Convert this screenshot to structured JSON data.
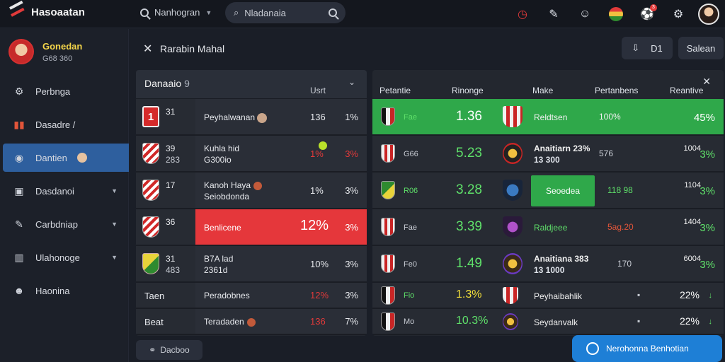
{
  "app": {
    "title": "Hasoaatan"
  },
  "topbar": {
    "search_label": "Nanhogran",
    "search_placeholder": "Nladanaia",
    "icons": [
      "clock-icon",
      "edit-icon",
      "smile-icon",
      "flag-icon",
      "ball-icon",
      "settings-icon",
      "avatar"
    ],
    "notif_count": "3"
  },
  "sidebar": {
    "profile": {
      "name": "Gonedan",
      "sub": "G68 360"
    },
    "items": [
      {
        "label": "Perbnga",
        "icon": "gear-icon"
      },
      {
        "label": "Dasadre /",
        "icon": "chart-icon"
      },
      {
        "label": "Dantien",
        "icon": "user-icon",
        "active": true
      },
      {
        "label": "Dasdanoi",
        "icon": "table-icon"
      },
      {
        "label": "Carbdniap",
        "icon": "edit-icon"
      },
      {
        "label": "Ulahonoge",
        "icon": "bars-icon"
      },
      {
        "label": "Haonina",
        "icon": "group-icon"
      }
    ]
  },
  "header": {
    "title": "Rarabin Mahal",
    "download_label": "D1",
    "save_label": "Salean"
  },
  "left_table": {
    "title": "Danaaio",
    "count": "9",
    "column": "Usrt",
    "rows": [
      {
        "rank": "31",
        "rank_sub": "",
        "name": "Peyhalwanan",
        "value": "136",
        "pct": "1%",
        "shield": "one",
        "shield_text": "1"
      },
      {
        "rank": "39",
        "rank_sub": "283",
        "name": "Kuhla hid",
        "name_sub": "G300io",
        "value": "1%",
        "pct": "3%",
        "shield": "red",
        "value_red": true,
        "pct_red": true
      },
      {
        "rank": "17",
        "rank_sub": "",
        "name": "Kanoh Haya",
        "name_sub": "Seiobdonda",
        "value": "1%",
        "pct": "3%",
        "shield": "red"
      },
      {
        "rank": "36",
        "rank_sub": "",
        "name": "Benlicene",
        "value": "12%",
        "pct": "3%",
        "shield": "red",
        "highlight": true
      },
      {
        "rank": "31",
        "rank_sub": "483",
        "name": "B7A lad",
        "name_sub": "2361d",
        "value": "10%",
        "pct": "3%",
        "shield": "green"
      },
      {
        "label": "Taen",
        "name": "Peradobnes",
        "value": "12%",
        "pct": "3%",
        "value_red": true
      },
      {
        "label": "Beat",
        "name": "Teradaden",
        "value": "136",
        "pct": "7%",
        "value_red": true
      }
    ],
    "footer_button": "Dacboo"
  },
  "right_table": {
    "headers": [
      "Petantie",
      "Rinonge",
      "Make",
      "Pertanbens",
      "Reantive"
    ],
    "rows": [
      {
        "code": "Fae",
        "value": "1.36",
        "name": "Reldtsen",
        "mid": "100%",
        "last": "45%",
        "green": true
      },
      {
        "code": "G66",
        "value": "5.23",
        "name": "Anaitiarn 23%",
        "name_sub": "13 300",
        "mid": "576",
        "last_small": "1004",
        "last": "3%"
      },
      {
        "code": "R06",
        "value": "3.28",
        "green_button": "Seoedea",
        "mid": "118 98",
        "last_small": "1104",
        "last": "3%"
      },
      {
        "code": "Fae",
        "value": "3.39",
        "name": "Raldjeee",
        "mid": "5ag.20",
        "last_small": "1404",
        "last": "3%"
      },
      {
        "code": "Fe0",
        "value": "1.49",
        "name": "Anaitiana 383",
        "name_sub": "13 1000",
        "mid": "170",
        "last_small": "6004",
        "last": "3%"
      },
      {
        "code": "Fio",
        "value": "1.3%",
        "name": "Peyhaibahlik",
        "mid": "▪",
        "last": "22%",
        "trend": "↓"
      },
      {
        "code": "Mo",
        "value": "10.3%",
        "name": "Seydanvalk",
        "mid": "▪",
        "last": "22%",
        "trend": "↓"
      }
    ]
  },
  "cta": {
    "label": "Nerohonna Benhotian"
  },
  "colors": {
    "accent": "#2e5f9e",
    "green": "#2fa84a",
    "red": "#e5373b",
    "cta": "#1e7fd6"
  }
}
